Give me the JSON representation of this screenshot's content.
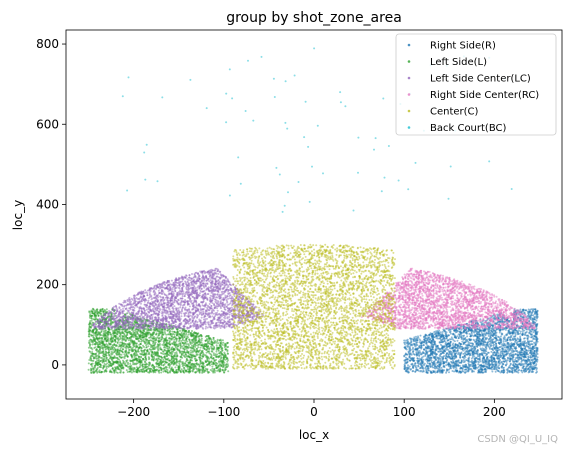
{
  "chart_data": {
    "type": "scatter",
    "title": "group by shot_zone_area",
    "xlabel": "loc_x",
    "ylabel": "loc_y",
    "xlim": [
      -275,
      275
    ],
    "ylim": [
      -85,
      835
    ],
    "xticks": [
      -200,
      -100,
      0,
      100,
      200
    ],
    "yticks": [
      0,
      200,
      400,
      600,
      800
    ],
    "grid": false,
    "legend_position": "top-right",
    "marker_size": 1,
    "alpha": 0.5,
    "series": [
      {
        "name": "Right Side(R)",
        "color": "#1f77b4",
        "region": {
          "x": [
            100,
            248
          ],
          "y": [
            -20,
            140
          ]
        },
        "approx_points": 3000
      },
      {
        "name": "Left Side(L)",
        "color": "#2ca02c",
        "region": {
          "x": [
            -250,
            -95
          ],
          "y": [
            -20,
            140
          ]
        },
        "approx_points": 3000
      },
      {
        "name": "Left Side Center(LC)",
        "color": "#9467bd",
        "region": {
          "x": [
            -245,
            -45
          ],
          "y": [
            90,
            270
          ]
        },
        "approx_points": 2600
      },
      {
        "name": "Right Side Center(RC)",
        "color": "#e377c2",
        "region": {
          "x": [
            45,
            245
          ],
          "y": [
            90,
            270
          ]
        },
        "approx_points": 2600
      },
      {
        "name": "Center(C)",
        "color": "#bcbd22",
        "region": {
          "x": [
            -90,
            90
          ],
          "y": [
            -10,
            330
          ]
        },
        "approx_points": 4200
      },
      {
        "name": "Back Court(BC)",
        "color": "#17becf",
        "region": {
          "x": [
            -220,
            220
          ],
          "y": [
            380,
            790
          ]
        },
        "approx_points": 70
      }
    ]
  },
  "watermark": "CSDN @QI_U_IQ"
}
